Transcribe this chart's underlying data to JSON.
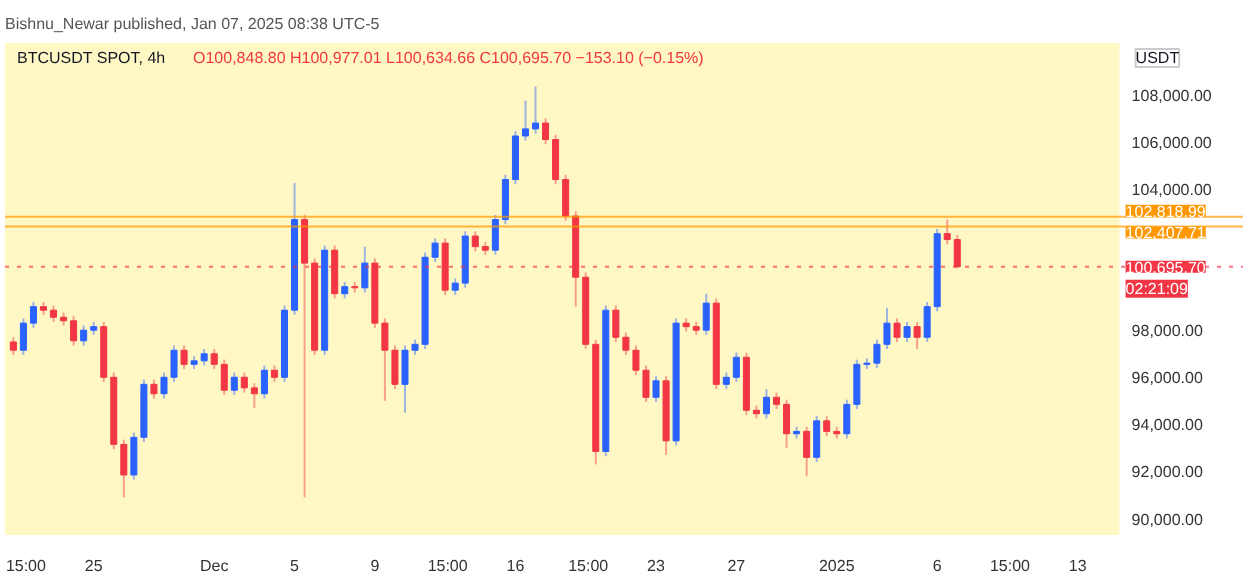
{
  "chart_data": {
    "type": "candlestick",
    "title": "BTCUSDT SPOT, 4h",
    "subtitle": "O100,848.80 H100,977.01 L100,634.66 C100,695.70 −153.10 (−0.15%)",
    "ylabel": "USDT",
    "annotations": [
      "Bishnu_Newar published, Jan 07, 2025 08:38 UTC-5",
      {
        "text": "02:21:09",
        "x": "2025-01-15T02:00",
        "y": 100695.7
      }
    ],
    "x": [
      "2024-11-21T00:00",
      "2024-11-21T12:00",
      "2024-11-22T00:00",
      "2024-11-22T12:00",
      "2024-11-23T00:00",
      "2024-11-23T12:00",
      "2024-11-24T00:00",
      "2024-11-24T12:00",
      "2024-11-25T00:00",
      "2024-11-25T12:00",
      "2024-11-26T00:00",
      "2024-11-26T12:00",
      "2024-11-27T00:00",
      "2024-11-27T12:00",
      "2024-11-28T00:00",
      "2024-11-28T12:00",
      "2024-11-29T00:00",
      "2024-11-29T12:00",
      "2024-11-30T00:00",
      "2024-11-30T12:00",
      "2024-12-01T00:00",
      "2024-12-01T12:00",
      "2024-12-02T00:00",
      "2024-12-02T12:00",
      "2024-12-03T00:00",
      "2024-12-03T12:00",
      "2024-12-04T00:00",
      "2024-12-04T12:00",
      "2024-12-05T00:00",
      "2024-12-05T12:00",
      "2024-12-06T00:00",
      "2024-12-06T12:00",
      "2024-12-07T00:00",
      "2024-12-07T12:00",
      "2024-12-08T00:00",
      "2024-12-08T12:00",
      "2024-12-09T00:00",
      "2024-12-09T12:00",
      "2024-12-10T00:00",
      "2024-12-10T12:00",
      "2024-12-11T00:00",
      "2024-12-11T12:00",
      "2024-12-12T00:00",
      "2024-12-12T12:00",
      "2024-12-13T00:00",
      "2024-12-13T12:00",
      "2024-12-14T00:00",
      "2024-12-14T12:00",
      "2024-12-15T00:00",
      "2024-12-15T12:00",
      "2024-12-16T00:00",
      "2024-12-16T12:00",
      "2024-12-17T00:00",
      "2024-12-17T12:00",
      "2024-12-18T00:00",
      "2024-12-18T12:00",
      "2024-12-19T00:00",
      "2024-12-19T12:00",
      "2024-12-20T00:00",
      "2024-12-20T12:00",
      "2024-12-21T00:00",
      "2024-12-21T12:00",
      "2024-12-22T00:00",
      "2024-12-22T12:00",
      "2024-12-23T00:00",
      "2024-12-23T12:00",
      "2024-12-24T00:00",
      "2024-12-24T12:00",
      "2024-12-25T00:00",
      "2024-12-25T12:00",
      "2024-12-26T00:00",
      "2024-12-26T12:00",
      "2024-12-27T00:00",
      "2024-12-27T12:00",
      "2024-12-28T00:00",
      "2024-12-28T12:00",
      "2024-12-29T00:00",
      "2024-12-29T12:00",
      "2024-12-30T00:00",
      "2024-12-30T12:00",
      "2024-12-31T00:00",
      "2024-12-31T12:00",
      "2025-01-01T00:00",
      "2025-01-01T12:00",
      "2025-01-02T00:00",
      "2025-01-02T12:00",
      "2025-01-03T00:00",
      "2025-01-03T12:00",
      "2025-01-04T00:00",
      "2025-01-04T12:00",
      "2025-01-05T00:00",
      "2025-01-05T12:00",
      "2025-01-06T00:00",
      "2025-01-06T12:00",
      "2025-01-07T00:00"
    ],
    "ohlc": [
      [
        97500,
        97700,
        96950,
        97150
      ],
      [
        97150,
        98500,
        96950,
        98300
      ],
      [
        98300,
        99200,
        98100,
        99000
      ],
      [
        99000,
        99200,
        98650,
        98850
      ],
      [
        98850,
        99050,
        98350,
        98550
      ],
      [
        98550,
        98750,
        98200,
        98400
      ],
      [
        98400,
        98600,
        97350,
        97550
      ],
      [
        97550,
        98200,
        97350,
        98000
      ],
      [
        98000,
        98350,
        97800,
        98150
      ],
      [
        98150,
        98350,
        95800,
        96000
      ],
      [
        96000,
        96200,
        92950,
        93150
      ],
      [
        93150,
        93350,
        90900,
        91850
      ],
      [
        91850,
        93650,
        91650,
        93450
      ],
      [
        93450,
        95900,
        93250,
        95700
      ],
      [
        95700,
        95900,
        95100,
        95300
      ],
      [
        95300,
        96200,
        95100,
        96000
      ],
      [
        96000,
        97350,
        95800,
        97150
      ],
      [
        97150,
        97350,
        96350,
        96550
      ],
      [
        96550,
        96900,
        96350,
        96700
      ],
      [
        96700,
        97200,
        96500,
        97000
      ],
      [
        97000,
        97200,
        96350,
        96550
      ],
      [
        96550,
        96750,
        95250,
        95450
      ],
      [
        95450,
        96200,
        95250,
        96000
      ],
      [
        96000,
        96200,
        95350,
        95550
      ],
      [
        95550,
        95750,
        94700,
        95300
      ],
      [
        95300,
        96500,
        95100,
        96300
      ],
      [
        96300,
        96500,
        95800,
        96000
      ],
      [
        96000,
        99050,
        95800,
        98850
      ],
      [
        98850,
        104250,
        98650,
        102700
      ],
      [
        102700,
        102900,
        90900,
        100850
      ],
      [
        100850,
        101050,
        96950,
        97150
      ],
      [
        97150,
        101600,
        96950,
        101400
      ],
      [
        101400,
        101600,
        99350,
        99550
      ],
      [
        99550,
        100050,
        99350,
        99850
      ],
      [
        99850,
        100050,
        99600,
        99800
      ],
      [
        99800,
        101550,
        99600,
        100850
      ],
      [
        100850,
        101050,
        98100,
        98300
      ],
      [
        98300,
        98500,
        95000,
        97150
      ],
      [
        97150,
        97350,
        95500,
        95700
      ],
      [
        95700,
        97350,
        94500,
        97150
      ],
      [
        97150,
        97600,
        96950,
        97400
      ],
      [
        97400,
        101300,
        97200,
        101100
      ],
      [
        101100,
        101900,
        100900,
        101700
      ],
      [
        101700,
        101900,
        99500,
        99700
      ],
      [
        99700,
        100200,
        99500,
        100000
      ],
      [
        100000,
        102200,
        99800,
        102000
      ],
      [
        102000,
        102200,
        101350,
        101550
      ],
      [
        101550,
        101750,
        101200,
        101400
      ],
      [
        101400,
        102900,
        101200,
        102700
      ],
      [
        102700,
        104600,
        102500,
        104400
      ],
      [
        104400,
        106450,
        104200,
        106250
      ],
      [
        106250,
        107750,
        106050,
        106550
      ],
      [
        106550,
        108350,
        106350,
        106800
      ],
      [
        106800,
        107000,
        105900,
        106100
      ],
      [
        106100,
        106300,
        104200,
        104400
      ],
      [
        104400,
        104600,
        102650,
        102850
      ],
      [
        102850,
        103050,
        99000,
        100250
      ],
      [
        100250,
        100450,
        97200,
        97400
      ],
      [
        97400,
        97600,
        92300,
        92850
      ],
      [
        92850,
        99050,
        92650,
        98850
      ],
      [
        98850,
        99050,
        97500,
        97700
      ],
      [
        97700,
        97900,
        96950,
        97150
      ],
      [
        97150,
        97350,
        96100,
        96300
      ],
      [
        96300,
        96500,
        94950,
        95150
      ],
      [
        95150,
        96050,
        94950,
        95850
      ],
      [
        95850,
        96050,
        92700,
        93300
      ],
      [
        93300,
        98500,
        93100,
        98300
      ],
      [
        98300,
        98500,
        97950,
        98150
      ],
      [
        98150,
        98350,
        97800,
        98000
      ],
      [
        98000,
        99550,
        97800,
        99150
      ],
      [
        99150,
        99350,
        95500,
        95700
      ],
      [
        95700,
        96200,
        95500,
        96000
      ],
      [
        96000,
        97050,
        95800,
        96850
      ],
      [
        96850,
        97050,
        94400,
        94600
      ],
      [
        94600,
        94800,
        94250,
        94450
      ],
      [
        94450,
        95500,
        94250,
        95150
      ],
      [
        95150,
        95350,
        94650,
        94850
      ],
      [
        94850,
        95050,
        93000,
        93600
      ],
      [
        93600,
        93900,
        93400,
        93700
      ],
      [
        93700,
        93900,
        91800,
        92600
      ],
      [
        92600,
        94350,
        92400,
        94150
      ],
      [
        94150,
        94350,
        93500,
        93700
      ],
      [
        93700,
        93900,
        93400,
        93600
      ],
      [
        93600,
        95050,
        93400,
        94850
      ],
      [
        94850,
        96750,
        94650,
        96550
      ],
      [
        96550,
        96800,
        96350,
        96600
      ],
      [
        96600,
        97600,
        96400,
        97400
      ],
      [
        97400,
        98950,
        97200,
        98300
      ],
      [
        98300,
        98500,
        97500,
        97700
      ],
      [
        97700,
        98350,
        97500,
        98150
      ],
      [
        98150,
        98350,
        97200,
        97700
      ],
      [
        97700,
        99200,
        97500,
        99000
      ],
      [
        99000,
        102300,
        98800,
        102100
      ],
      [
        102100,
        102700,
        101650,
        101850
      ],
      [
        101850,
        102050,
        100634.66,
        100695.7
      ]
    ],
    "colors": [
      "#f23645",
      "#2962ff",
      "#2962ff",
      "#f23645",
      "#f23645",
      "#f23645",
      "#f23645",
      "#2962ff",
      "#2962ff",
      "#f23645",
      "#f23645",
      "#f23645",
      "#2962ff",
      "#2962ff",
      "#f23645",
      "#2962ff",
      "#2962ff",
      "#f23645",
      "#2962ff",
      "#2962ff",
      "#f23645",
      "#f23645",
      "#2962ff",
      "#f23645",
      "#f23645",
      "#2962ff",
      "#f23645",
      "#2962ff",
      "#2962ff",
      "#f23645",
      "#f23645",
      "#2962ff",
      "#f23645",
      "#2962ff",
      "#f23645",
      "#2962ff",
      "#f23645",
      "#f23645",
      "#f23645",
      "#2962ff",
      "#2962ff",
      "#2962ff",
      "#2962ff",
      "#f23645",
      "#2962ff",
      "#2962ff",
      "#f23645",
      "#f23645",
      "#2962ff",
      "#2962ff",
      "#2962ff",
      "#2962ff",
      "#2962ff",
      "#f23645",
      "#f23645",
      "#f23645",
      "#f23645",
      "#f23645",
      "#f23645",
      "#2962ff",
      "#f23645",
      "#f23645",
      "#f23645",
      "#f23645",
      "#2962ff",
      "#f23645",
      "#2962ff",
      "#f23645",
      "#f23645",
      "#2962ff",
      "#f23645",
      "#2962ff",
      "#2962ff",
      "#f23645",
      "#f23645",
      "#2962ff",
      "#f23645",
      "#f23645",
      "#2962ff",
      "#f23645",
      "#2962ff",
      "#f23645",
      "#f23645",
      "#2962ff",
      "#2962ff",
      "#2962ff",
      "#2962ff",
      "#2962ff",
      "#f23645",
      "#2962ff",
      "#f23645",
      "#2962ff",
      "#2962ff",
      "#f23645",
      "#f23645"
    ],
    "xlim": [
      "2024-11-20T14:00",
      "2025-01-15T02:00"
    ],
    "xticks": [
      {
        "value": "2024-11-21T15:00",
        "label": "15:00"
      },
      {
        "value": "2024-11-25",
        "label": "25"
      },
      {
        "value": "2024-12-01",
        "label": "Dec"
      },
      {
        "value": "2024-12-05",
        "label": "5"
      },
      {
        "value": "2024-12-09",
        "label": "9"
      },
      {
        "value": "2024-12-12T15:00",
        "label": "15:00"
      },
      {
        "value": "2024-12-16",
        "label": "16"
      },
      {
        "value": "2024-12-19T15:00",
        "label": "15:00"
      },
      {
        "value": "2024-12-23",
        "label": "23"
      },
      {
        "value": "2024-12-27",
        "label": "27"
      },
      {
        "value": "2025-01-01",
        "label": "2025"
      },
      {
        "value": "2025-01-06",
        "label": "6"
      },
      {
        "value": "2025-01-09T15:00",
        "label": "15:00"
      },
      {
        "value": "2025-01-13",
        "label": "13"
      }
    ],
    "ylim": [
      89300,
      110200
    ],
    "yticks": [
      {
        "value": 90000,
        "label": "90,000.00"
      },
      {
        "value": 92000,
        "label": "92,000.00"
      },
      {
        "value": 94000,
        "label": "94,000.00"
      },
      {
        "value": 96000,
        "label": "96,000.00"
      },
      {
        "value": 98000,
        "label": "98,000.00"
      },
      {
        "value": 104000,
        "label": "104,000.00"
      },
      {
        "value": 106000,
        "label": "106,000.00"
      },
      {
        "value": 108000,
        "label": "108,000.00"
      }
    ],
    "ref_lines": [
      {
        "axis": "y",
        "value": 102818.99,
        "label": "102,818.99",
        "color": "#ff9800"
      },
      {
        "axis": "y",
        "value": 102407.71,
        "label": "102,407.71",
        "color": "#ff9800"
      },
      {
        "axis": "y",
        "value": 100695.7,
        "label": "100,695.70",
        "color": "#f23645",
        "line_style": "dotted"
      }
    ],
    "grid": false
  }
}
